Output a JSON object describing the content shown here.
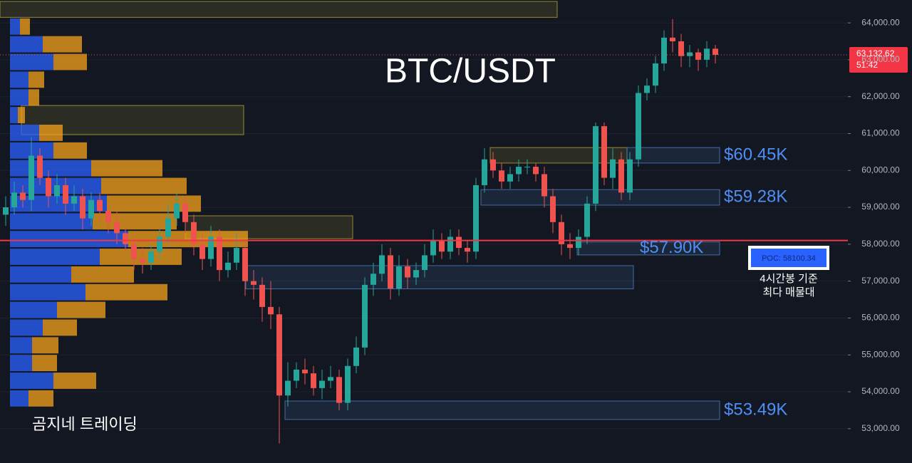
{
  "chart_data": {
    "type": "candlestick",
    "title": "BTC/USDT",
    "watermark": "곰지네 트레이딩",
    "categories": [
      null,
      null,
      null,
      null,
      null,
      null,
      null,
      null,
      null,
      null,
      null,
      null,
      null,
      null,
      null,
      null,
      null,
      null,
      null,
      null,
      null,
      null,
      null,
      null,
      null,
      null,
      null,
      null,
      null,
      null,
      null,
      null,
      null,
      null,
      null,
      null,
      null,
      null,
      null,
      null,
      null,
      null,
      null,
      null,
      null,
      null,
      null,
      null,
      null,
      null,
      null,
      null,
      null,
      null,
      null,
      null,
      null,
      null,
      null,
      null,
      null,
      null,
      null,
      null,
      null,
      null,
      null,
      null,
      null,
      null,
      null,
      null,
      null,
      null,
      null,
      null,
      null,
      null,
      null,
      null,
      null,
      null,
      null,
      null
    ],
    "open": [
      58800,
      59000,
      59400,
      59200,
      60400,
      59800,
      59300,
      59600,
      59100,
      59300,
      58700,
      59200,
      58900,
      58600,
      58300,
      58000,
      57600,
      57500,
      57800,
      58200,
      58700,
      59100,
      58600,
      58000,
      57600,
      58200,
      57300,
      57500,
      57900,
      57000,
      56900,
      56300,
      56100,
      53900,
      54300,
      54600,
      54500,
      54100,
      54300,
      54400,
      53700,
      54700,
      55200,
      56900,
      57200,
      57700,
      56800,
      57400,
      57100,
      57300,
      57700,
      58100,
      57800,
      58200,
      57900,
      57800,
      59600,
      60300,
      60000,
      59700,
      59900,
      60100,
      60100,
      59900,
      59300,
      58600,
      58000,
      57900,
      58200,
      59100,
      61200,
      59800,
      60300,
      59400,
      60300,
      62100,
      62300,
      62900,
      63600,
      63500,
      63100,
      63200,
      63000,
      63300
    ],
    "high": [
      59300,
      59700,
      59600,
      60900,
      60600,
      60000,
      59900,
      59800,
      59600,
      59500,
      59400,
      59400,
      59100,
      58900,
      58500,
      58200,
      57900,
      58000,
      58400,
      59100,
      59400,
      59300,
      58800,
      58300,
      58500,
      58400,
      57800,
      58300,
      58100,
      57300,
      57100,
      57000,
      56300,
      54800,
      54800,
      54900,
      54700,
      54600,
      54700,
      54600,
      54900,
      55500,
      57100,
      57500,
      58000,
      57900,
      57700,
      57600,
      57500,
      58000,
      58400,
      58300,
      58400,
      58400,
      58100,
      59800,
      60600,
      60500,
      60200,
      60100,
      60300,
      60300,
      60200,
      60100,
      59500,
      58800,
      58300,
      58400,
      59300,
      61300,
      61300,
      60600,
      60500,
      60500,
      62300,
      62500,
      63100,
      63800,
      64100,
      63700,
      63400,
      63300,
      63500,
      63400
    ],
    "low": [
      58500,
      58800,
      59000,
      58900,
      59600,
      59000,
      59100,
      58800,
      58900,
      58400,
      58500,
      58600,
      58300,
      58000,
      57700,
      57300,
      57200,
      57300,
      57600,
      58000,
      58500,
      58300,
      57700,
      57300,
      57400,
      57000,
      57100,
      57300,
      56600,
      56500,
      55900,
      55700,
      52600,
      53600,
      54100,
      54200,
      53900,
      53800,
      54100,
      53500,
      53500,
      54500,
      55000,
      56600,
      57000,
      56500,
      56600,
      56800,
      56900,
      57100,
      57500,
      57600,
      57600,
      57700,
      57500,
      57600,
      59400,
      59800,
      59500,
      59500,
      59700,
      59900,
      59700,
      59000,
      58300,
      57700,
      57600,
      57700,
      58000,
      58900,
      59600,
      59500,
      59200,
      59200,
      60100,
      61900,
      62100,
      62700,
      63200,
      62800,
      62800,
      62700,
      62800,
      62900
    ],
    "close": [
      59000,
      59400,
      59200,
      60400,
      59800,
      59300,
      59600,
      59100,
      59300,
      58700,
      59200,
      58900,
      58600,
      58300,
      58000,
      57600,
      57500,
      57800,
      58200,
      58700,
      59100,
      58600,
      58000,
      57600,
      58200,
      57300,
      57500,
      57900,
      57000,
      56900,
      56300,
      56100,
      53900,
      54300,
      54600,
      54500,
      54100,
      54300,
      54400,
      53700,
      54700,
      55200,
      56900,
      57200,
      57700,
      56800,
      57400,
      57100,
      57300,
      57700,
      58100,
      57800,
      58200,
      57900,
      57800,
      59600,
      60300,
      60000,
      59700,
      59900,
      60100,
      60100,
      59900,
      59300,
      58600,
      58000,
      57900,
      58200,
      59100,
      61200,
      59800,
      60300,
      59400,
      60300,
      62100,
      62300,
      62900,
      63600,
      63500,
      63100,
      63200,
      63000,
      63300,
      63132.62
    ],
    "up_color": "#26a69a",
    "down_color": "#ef5350",
    "ylim": [
      52070,
      64620
    ],
    "yticks": [
      {
        "value": 53000,
        "label": "53,000.00"
      },
      {
        "value": 54000,
        "label": "54,000.00"
      },
      {
        "value": 55000,
        "label": "55,000.00"
      },
      {
        "value": 56000,
        "label": "56,000.00"
      },
      {
        "value": 57000,
        "label": "57,000.00"
      },
      {
        "value": 58000,
        "label": "58,000.00"
      },
      {
        "value": 59000,
        "label": "59,000.00"
      },
      {
        "value": 60000,
        "label": "60,000.00"
      },
      {
        "value": 61000,
        "label": "61,000.00"
      },
      {
        "value": 62000,
        "label": "62,000.00"
      },
      {
        "value": 63000,
        "label": "63,000.00"
      },
      {
        "value": 64000,
        "label": "64,000.00"
      }
    ],
    "grid": true,
    "last_price": {
      "value": 63132.62,
      "label": "63,132.62"
    },
    "countdown": "51:42",
    "poc": {
      "value": 58100.34,
      "label": "POC: 58100.34",
      "color": "#f23645"
    },
    "poc_note": [
      "4시간봉 기준",
      "최다 매물대"
    ],
    "volume_profile": {
      "prices": [
        63900,
        63420,
        62940,
        62460,
        61980,
        61500,
        61020,
        60540,
        60060,
        59580,
        59100,
        58620,
        58140,
        57660,
        57180,
        56700,
        56220,
        55740,
        55260,
        54780,
        54300,
        53820
      ],
      "up": [
        14,
        46,
        61,
        26,
        26,
        11,
        41,
        61,
        114,
        128,
        136,
        116,
        166,
        126,
        86,
        106,
        66,
        46,
        31,
        31,
        61,
        26
      ],
      "down": [
        14,
        55,
        47,
        22,
        15,
        10,
        33,
        47,
        100,
        120,
        132,
        118,
        168,
        115,
        88,
        115,
        68,
        48,
        37,
        35,
        60,
        35
      ],
      "up_color": "#2962ff",
      "down_color": "#f7a21b"
    },
    "zones": [
      {
        "low": 64150,
        "high": 64580,
        "color": "#b5a532"
      },
      {
        "low": 60970,
        "high": 61760,
        "color": "#b5a532"
      },
      {
        "low": 58150,
        "high": 58770,
        "color": "#b5a532"
      },
      {
        "low": 60200,
        "high": 60620,
        "color": "#b5a532"
      },
      {
        "low": 60200,
        "high": 60620,
        "color": "#4a7fc1",
        "label": "$60.45K"
      },
      {
        "low": 59060,
        "high": 59480,
        "color": "#4a7fc1",
        "label": "$59.28K"
      },
      {
        "low": 57710,
        "high": 58060,
        "color": "#4a7fc1",
        "label": "$57.90K"
      },
      {
        "low": 56790,
        "high": 57420,
        "color": "#4a7fc1"
      },
      {
        "low": 53250,
        "high": 53750,
        "color": "#4a7fc1",
        "label": "$53.49K"
      }
    ]
  }
}
